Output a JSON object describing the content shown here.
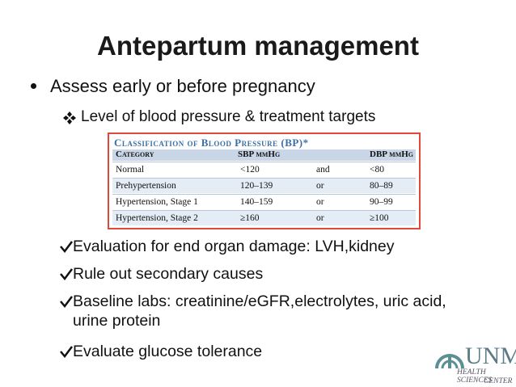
{
  "title": "Antepartum management",
  "bullet": "Assess early or before pregnancy",
  "sub_bullet": "Level of blood pressure & treatment targets",
  "table": {
    "title": "Classification of Blood Pressure (BP)*",
    "header": [
      "Category",
      "SBP mmHg",
      "DBP mmHg"
    ],
    "rows": [
      [
        "Normal",
        "<120",
        "and",
        "<80"
      ],
      [
        "Prehypertension",
        "120–139",
        "or",
        "80–89"
      ],
      [
        "Hypertension, Stage 1",
        "140–159",
        "or",
        "90–99"
      ],
      [
        "Hypertension, Stage 2",
        "≥160",
        "or",
        "≥100"
      ]
    ]
  },
  "checklist": [
    "Evaluation for end organ damage: LVH,kidney",
    "Rule out secondary causes",
    "Baseline labs: creatinine/eGFR,electrolytes, uric acid, urine protein",
    "Evaluate glucose tolerance"
  ],
  "logo": {
    "name": "UNM",
    "line1": "HEALTH SCIENCES",
    "line2": "CENTER"
  }
}
